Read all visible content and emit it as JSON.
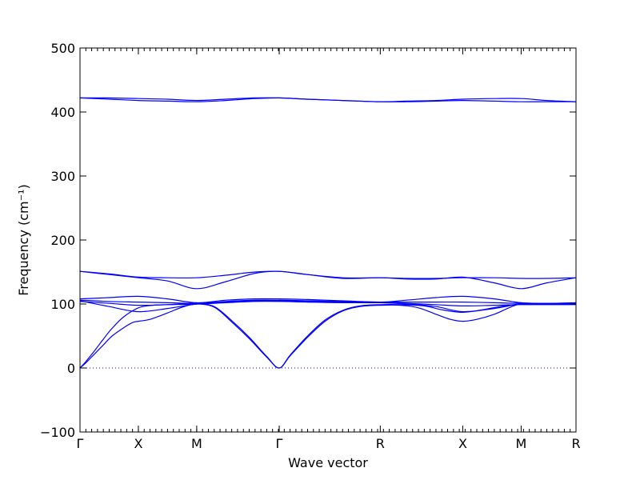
{
  "chart_data": {
    "type": "line",
    "title": "",
    "xlabel": "Wave vector",
    "ylabel": "Frequency (cm⁻¹)",
    "ylim": [
      -100,
      500
    ],
    "yticks": [
      -100,
      0,
      100,
      200,
      300,
      400,
      500
    ],
    "ytick_labels": [
      "−100",
      "0",
      "100",
      "200",
      "300",
      "400",
      "500"
    ],
    "xlim": [
      0,
      8.5
    ],
    "kpoints": [
      {
        "label": "Γ",
        "x": 0
      },
      {
        "label": "X",
        "x": 1
      },
      {
        "label": "M",
        "x": 2
      },
      {
        "label": "Γ",
        "x": 3.414
      },
      {
        "label": "R",
        "x": 5.146
      },
      {
        "label": "X",
        "x": 6.56
      },
      {
        "label": "M",
        "x": 7.56
      },
      {
        "label": "R",
        "x": 8.5
      }
    ],
    "zero_line": 0,
    "series_color": "#0000ff",
    "series": [
      {
        "x": [
          0,
          0.5,
          1,
          1.5,
          2,
          2.5,
          3,
          3.414,
          3.9,
          4.5,
          5.146,
          5.6,
          6.1,
          6.56,
          7.1,
          7.56,
          8,
          8.5
        ],
        "y": [
          422,
          422,
          421,
          420,
          418,
          420,
          422,
          422,
          420,
          418,
          416,
          417,
          418,
          420,
          421,
          421,
          418,
          416
        ]
      },
      {
        "x": [
          0,
          0.5,
          1,
          1.5,
          2,
          2.5,
          3,
          3.414,
          3.9,
          4.5,
          5.146,
          5.6,
          6.1,
          6.56,
          7.1,
          7.56,
          8,
          8.5
        ],
        "y": [
          422,
          420,
          418,
          417,
          416,
          418,
          421,
          422,
          420,
          418,
          416,
          416,
          417,
          418,
          417,
          416,
          416,
          416
        ]
      },
      {
        "x": [
          0,
          0.5,
          1,
          1.5,
          2,
          2.5,
          3,
          3.414,
          3.9,
          4.5,
          5.146,
          5.6,
          6.1,
          6.56,
          7.1,
          7.56,
          8,
          8.5
        ],
        "y": [
          151,
          147,
          142,
          141,
          141,
          145,
          150,
          151,
          146,
          141,
          141,
          140,
          140,
          141,
          141,
          140,
          140,
          141
        ]
      },
      {
        "x": [
          0,
          0.5,
          1,
          1.5,
          2,
          2.5,
          3,
          3.414,
          3.9,
          4.5,
          5.146,
          5.6,
          6.1,
          6.56,
          7.1,
          7.56,
          8,
          8.5
        ],
        "y": [
          151,
          146,
          141,
          136,
          124,
          135,
          148,
          151,
          146,
          140,
          141,
          139,
          139,
          142,
          133,
          124,
          133,
          141
        ]
      },
      {
        "x": [
          0,
          0.5,
          1,
          1.5,
          2,
          2.5,
          3,
          3.414,
          3.9,
          4.5,
          5.146,
          5.6,
          6.1,
          6.56,
          7.1,
          7.56,
          8,
          8.5
        ],
        "y": [
          108,
          110,
          112,
          108,
          102,
          106,
          108,
          108,
          107,
          105,
          103,
          106,
          110,
          112,
          108,
          102,
          101,
          102
        ]
      },
      {
        "x": [
          0,
          0.5,
          1,
          1.5,
          2,
          2.5,
          3,
          3.414,
          3.9,
          4.5,
          5.146,
          5.6,
          6.1,
          6.56,
          7.1,
          7.56,
          8,
          8.5
        ],
        "y": [
          106,
          104,
          103,
          102,
          101,
          104,
          106,
          106,
          105,
          104,
          103,
          103,
          103,
          103,
          102,
          101,
          101,
          101
        ]
      },
      {
        "x": [
          0,
          0.5,
          1,
          1.5,
          2,
          2.5,
          3,
          3.414,
          3.9,
          4.5,
          5.146,
          5.6,
          6.1,
          6.56,
          7.1,
          7.56,
          8,
          8.5
        ],
        "y": [
          105,
          96,
          88,
          93,
          100,
          103,
          105,
          105,
          104,
          103,
          102,
          100,
          96,
          88,
          93,
          100,
          100,
          100
        ]
      },
      {
        "x": [
          0,
          0.5,
          1,
          1.5,
          2,
          2.5,
          3,
          3.414,
          3.9,
          4.5,
          5.146,
          5.6,
          6.1,
          6.56,
          7.1,
          7.56,
          8,
          8.5
        ],
        "y": [
          104,
          101,
          98,
          99,
          100,
          102,
          104,
          104,
          103,
          102,
          102,
          101,
          99,
          97,
          98,
          99,
          99,
          99
        ]
      },
      {
        "x": [
          0,
          0.1,
          0.25,
          0.4,
          0.55,
          0.75,
          1,
          1.25,
          1.5,
          1.75,
          2,
          2.3,
          2.6,
          2.9,
          3.2,
          3.414,
          3.6,
          3.9,
          4.2,
          4.5,
          4.8,
          5.146,
          5.5,
          5.9,
          6.2,
          6.56,
          6.9,
          7.2,
          7.56,
          8,
          8.5
        ],
        "y": [
          0,
          10,
          27,
          45,
          62,
          80,
          94,
          98,
          99,
          100,
          101,
          96,
          74,
          48,
          18,
          0,
          20,
          50,
          75,
          90,
          97,
          99,
          99,
          97,
          91,
          87,
          91,
          96,
          100,
          100,
          100
        ]
      },
      {
        "x": [
          0,
          0.1,
          0.25,
          0.4,
          0.55,
          0.75,
          0.9,
          1,
          1.2,
          1.5,
          1.75,
          2,
          2.3,
          2.6,
          2.9,
          3.2,
          3.414,
          3.6,
          3.9,
          4.2,
          4.5,
          4.8,
          5.146,
          5.5,
          5.8,
          6.1,
          6.35,
          6.56,
          6.8,
          7.1,
          7.35,
          7.56,
          8,
          8.5
        ],
        "y": [
          0,
          8,
          22,
          36,
          50,
          63,
          71,
          73,
          76,
          86,
          95,
          100,
          95,
          72,
          46,
          17,
          0,
          19,
          48,
          73,
          89,
          96,
          98,
          98,
          94,
          84,
          76,
          73,
          76,
          84,
          94,
          100,
          100,
          100
        ]
      }
    ]
  }
}
